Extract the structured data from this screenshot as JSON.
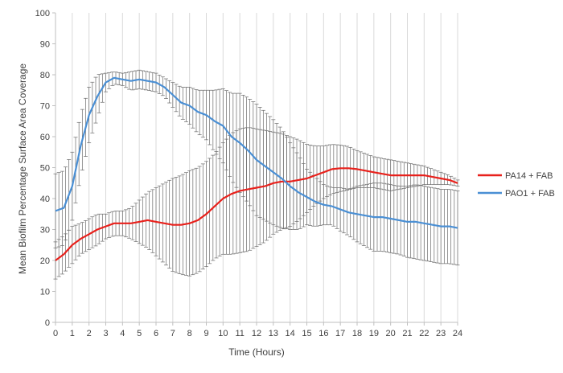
{
  "chart_data": {
    "type": "line",
    "title": "",
    "xlabel": "Time (Hours)",
    "ylabel": "Mean Biofilm  Percentage Surface Area Coverage",
    "xlim": [
      0,
      24
    ],
    "ylim": [
      0,
      100
    ],
    "x_ticks": [
      0,
      1,
      2,
      3,
      4,
      5,
      6,
      7,
      8,
      9,
      10,
      11,
      12,
      13,
      14,
      15,
      16,
      17,
      18,
      19,
      20,
      21,
      22,
      23,
      24
    ],
    "y_ticks": [
      0,
      10,
      20,
      30,
      40,
      50,
      60,
      70,
      80,
      90,
      100
    ],
    "grid": "vertical",
    "legend_position": "right",
    "error_bars": true,
    "series": [
      {
        "name": "PA14 + FAB",
        "color": "#e8211c",
        "x": [
          0,
          0.5,
          1,
          1.5,
          2,
          2.5,
          3,
          3.5,
          4,
          4.5,
          5,
          5.5,
          6,
          6.5,
          7,
          7.5,
          8,
          8.5,
          9,
          9.5,
          10,
          10.5,
          11,
          11.5,
          12,
          12.5,
          13,
          13.5,
          14,
          14.5,
          15,
          15.5,
          16,
          16.5,
          17,
          17.5,
          18,
          18.5,
          19,
          19.5,
          20,
          20.5,
          21,
          21.5,
          22,
          22.5,
          23,
          23.5,
          24
        ],
        "values": [
          20,
          22,
          25,
          27,
          28.5,
          30,
          31,
          32,
          32,
          32,
          32.5,
          33,
          32.5,
          32,
          31.5,
          31.5,
          32,
          33,
          35,
          37.5,
          40,
          41.5,
          42.5,
          43,
          43.5,
          44,
          45,
          45.5,
          45.5,
          46,
          46.5,
          47.5,
          48.5,
          49.5,
          49.8,
          49.8,
          49.5,
          49,
          48.5,
          48,
          47.5,
          47.5,
          47.5,
          47.5,
          47.5,
          47,
          46.5,
          46,
          45
        ],
        "error": [
          6,
          6,
          6,
          5,
          5,
          5,
          4,
          4,
          4,
          5,
          7,
          9,
          11,
          13,
          15,
          16,
          17,
          17,
          17,
          17,
          18,
          19.5,
          20,
          20,
          19,
          18,
          16.5,
          15.5,
          14.5,
          13,
          11,
          9.5,
          8.5,
          8,
          7.5,
          7,
          6,
          5.5,
          5,
          5,
          5,
          4.5,
          4,
          3.5,
          3,
          2.5,
          2,
          1.5,
          1
        ]
      },
      {
        "name": "PAO1 + FAB",
        "color": "#4a8fd4",
        "x": [
          0,
          0.5,
          1,
          1.5,
          2,
          2.5,
          3,
          3.5,
          4,
          4.5,
          5,
          5.5,
          6,
          6.5,
          7,
          7.5,
          8,
          8.5,
          9,
          9.5,
          10,
          10.5,
          11,
          11.5,
          12,
          12.5,
          13,
          13.5,
          14,
          14.5,
          15,
          15.5,
          16,
          16.5,
          17,
          17.5,
          18,
          18.5,
          19,
          19.5,
          20,
          20.5,
          21,
          21.5,
          22,
          22.5,
          23,
          23.5,
          24
        ],
        "values": [
          36,
          37,
          44,
          57,
          67,
          73,
          77.5,
          79,
          78.5,
          78,
          78.5,
          78,
          77.5,
          76,
          73.5,
          71,
          70,
          68,
          67,
          65,
          63.5,
          60,
          58,
          55.5,
          52.5,
          50.5,
          48.5,
          46.5,
          44,
          42,
          40.5,
          39,
          38,
          37.5,
          36.5,
          35.5,
          35,
          34.5,
          34,
          34,
          33.5,
          33,
          32.5,
          32.5,
          32,
          31.5,
          31,
          31,
          30.5
        ],
        "error": [
          12,
          12,
          11,
          10,
          9,
          7,
          3,
          2,
          2,
          3,
          3,
          3,
          3,
          3,
          4,
          5,
          6,
          7,
          8,
          10,
          12,
          14,
          16,
          17,
          18,
          17.5,
          17,
          16,
          14,
          12,
          9,
          8,
          6.5,
          6,
          7,
          7.5,
          9,
          10,
          11,
          11,
          11,
          11,
          11.5,
          12,
          12,
          12,
          12,
          12,
          12
        ]
      }
    ]
  }
}
